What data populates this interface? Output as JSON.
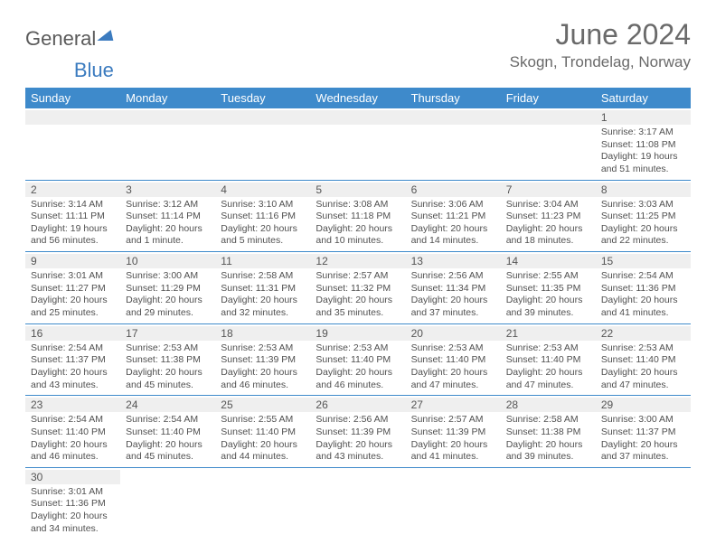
{
  "logo": {
    "text_main": "General",
    "text_accent": "Blue"
  },
  "title": {
    "month": "June 2024",
    "location": "Skogn, Trondelag, Norway"
  },
  "weekdays": [
    "Sunday",
    "Monday",
    "Tuesday",
    "Wednesday",
    "Thursday",
    "Friday",
    "Saturday"
  ],
  "styles": {
    "header_bg": "#3e8acb",
    "header_fg": "#ffffff",
    "accent": "#3b7bbf",
    "daynum_bg": "#efefef",
    "cell_border": "#3e8acb",
    "text_color": "#505050"
  },
  "weeks": [
    [
      null,
      null,
      null,
      null,
      null,
      null,
      {
        "n": "1",
        "sr": "Sunrise: 3:17 AM",
        "ss": "Sunset: 11:08 PM",
        "d1": "Daylight: 19 hours",
        "d2": "and 51 minutes."
      }
    ],
    [
      {
        "n": "2",
        "sr": "Sunrise: 3:14 AM",
        "ss": "Sunset: 11:11 PM",
        "d1": "Daylight: 19 hours",
        "d2": "and 56 minutes."
      },
      {
        "n": "3",
        "sr": "Sunrise: 3:12 AM",
        "ss": "Sunset: 11:14 PM",
        "d1": "Daylight: 20 hours",
        "d2": "and 1 minute."
      },
      {
        "n": "4",
        "sr": "Sunrise: 3:10 AM",
        "ss": "Sunset: 11:16 PM",
        "d1": "Daylight: 20 hours",
        "d2": "and 5 minutes."
      },
      {
        "n": "5",
        "sr": "Sunrise: 3:08 AM",
        "ss": "Sunset: 11:18 PM",
        "d1": "Daylight: 20 hours",
        "d2": "and 10 minutes."
      },
      {
        "n": "6",
        "sr": "Sunrise: 3:06 AM",
        "ss": "Sunset: 11:21 PM",
        "d1": "Daylight: 20 hours",
        "d2": "and 14 minutes."
      },
      {
        "n": "7",
        "sr": "Sunrise: 3:04 AM",
        "ss": "Sunset: 11:23 PM",
        "d1": "Daylight: 20 hours",
        "d2": "and 18 minutes."
      },
      {
        "n": "8",
        "sr": "Sunrise: 3:03 AM",
        "ss": "Sunset: 11:25 PM",
        "d1": "Daylight: 20 hours",
        "d2": "and 22 minutes."
      }
    ],
    [
      {
        "n": "9",
        "sr": "Sunrise: 3:01 AM",
        "ss": "Sunset: 11:27 PM",
        "d1": "Daylight: 20 hours",
        "d2": "and 25 minutes."
      },
      {
        "n": "10",
        "sr": "Sunrise: 3:00 AM",
        "ss": "Sunset: 11:29 PM",
        "d1": "Daylight: 20 hours",
        "d2": "and 29 minutes."
      },
      {
        "n": "11",
        "sr": "Sunrise: 2:58 AM",
        "ss": "Sunset: 11:31 PM",
        "d1": "Daylight: 20 hours",
        "d2": "and 32 minutes."
      },
      {
        "n": "12",
        "sr": "Sunrise: 2:57 AM",
        "ss": "Sunset: 11:32 PM",
        "d1": "Daylight: 20 hours",
        "d2": "and 35 minutes."
      },
      {
        "n": "13",
        "sr": "Sunrise: 2:56 AM",
        "ss": "Sunset: 11:34 PM",
        "d1": "Daylight: 20 hours",
        "d2": "and 37 minutes."
      },
      {
        "n": "14",
        "sr": "Sunrise: 2:55 AM",
        "ss": "Sunset: 11:35 PM",
        "d1": "Daylight: 20 hours",
        "d2": "and 39 minutes."
      },
      {
        "n": "15",
        "sr": "Sunrise: 2:54 AM",
        "ss": "Sunset: 11:36 PM",
        "d1": "Daylight: 20 hours",
        "d2": "and 41 minutes."
      }
    ],
    [
      {
        "n": "16",
        "sr": "Sunrise: 2:54 AM",
        "ss": "Sunset: 11:37 PM",
        "d1": "Daylight: 20 hours",
        "d2": "and 43 minutes."
      },
      {
        "n": "17",
        "sr": "Sunrise: 2:53 AM",
        "ss": "Sunset: 11:38 PM",
        "d1": "Daylight: 20 hours",
        "d2": "and 45 minutes."
      },
      {
        "n": "18",
        "sr": "Sunrise: 2:53 AM",
        "ss": "Sunset: 11:39 PM",
        "d1": "Daylight: 20 hours",
        "d2": "and 46 minutes."
      },
      {
        "n": "19",
        "sr": "Sunrise: 2:53 AM",
        "ss": "Sunset: 11:40 PM",
        "d1": "Daylight: 20 hours",
        "d2": "and 46 minutes."
      },
      {
        "n": "20",
        "sr": "Sunrise: 2:53 AM",
        "ss": "Sunset: 11:40 PM",
        "d1": "Daylight: 20 hours",
        "d2": "and 47 minutes."
      },
      {
        "n": "21",
        "sr": "Sunrise: 2:53 AM",
        "ss": "Sunset: 11:40 PM",
        "d1": "Daylight: 20 hours",
        "d2": "and 47 minutes."
      },
      {
        "n": "22",
        "sr": "Sunrise: 2:53 AM",
        "ss": "Sunset: 11:40 PM",
        "d1": "Daylight: 20 hours",
        "d2": "and 47 minutes."
      }
    ],
    [
      {
        "n": "23",
        "sr": "Sunrise: 2:54 AM",
        "ss": "Sunset: 11:40 PM",
        "d1": "Daylight: 20 hours",
        "d2": "and 46 minutes."
      },
      {
        "n": "24",
        "sr": "Sunrise: 2:54 AM",
        "ss": "Sunset: 11:40 PM",
        "d1": "Daylight: 20 hours",
        "d2": "and 45 minutes."
      },
      {
        "n": "25",
        "sr": "Sunrise: 2:55 AM",
        "ss": "Sunset: 11:40 PM",
        "d1": "Daylight: 20 hours",
        "d2": "and 44 minutes."
      },
      {
        "n": "26",
        "sr": "Sunrise: 2:56 AM",
        "ss": "Sunset: 11:39 PM",
        "d1": "Daylight: 20 hours",
        "d2": "and 43 minutes."
      },
      {
        "n": "27",
        "sr": "Sunrise: 2:57 AM",
        "ss": "Sunset: 11:39 PM",
        "d1": "Daylight: 20 hours",
        "d2": "and 41 minutes."
      },
      {
        "n": "28",
        "sr": "Sunrise: 2:58 AM",
        "ss": "Sunset: 11:38 PM",
        "d1": "Daylight: 20 hours",
        "d2": "and 39 minutes."
      },
      {
        "n": "29",
        "sr": "Sunrise: 3:00 AM",
        "ss": "Sunset: 11:37 PM",
        "d1": "Daylight: 20 hours",
        "d2": "and 37 minutes."
      }
    ],
    [
      {
        "n": "30",
        "sr": "Sunrise: 3:01 AM",
        "ss": "Sunset: 11:36 PM",
        "d1": "Daylight: 20 hours",
        "d2": "and 34 minutes."
      },
      null,
      null,
      null,
      null,
      null,
      null
    ]
  ]
}
